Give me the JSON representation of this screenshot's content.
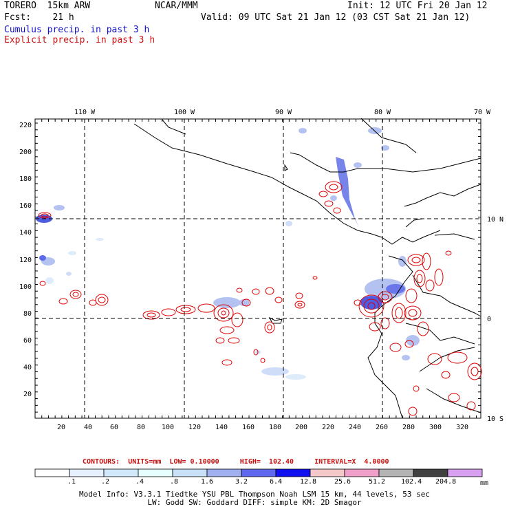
{
  "header": {
    "model_name": "TORERO  15km ARW",
    "org": "NCAR/MMM",
    "init": "Init: 12 UTC Fri 20 Jan 12",
    "fcst": "Fcst:    21 h",
    "valid": "Valid: 09 UTC Sat 21 Jan 12 (03 CST Sat 21 Jan 12)",
    "cumulus": "Cumulus precip. in past 3 h",
    "explicit": "Explicit precip. in past 3 h"
  },
  "colors": {
    "cumulus_text": "#1010c8",
    "explicit_text": "#d01010",
    "contour_red": "#e00000",
    "map_line": "#000000"
  },
  "map": {
    "lon_labels": [
      "110 W",
      "100 W",
      "90 W",
      "80 W",
      "70 W"
    ],
    "lat_labels": [
      "10 N",
      "0",
      "10 S"
    ],
    "y_ticks": [
      "220",
      "200",
      "180",
      "160",
      "140",
      "120",
      "100",
      "80",
      "60",
      "40",
      "20"
    ],
    "x_ticks": [
      "20",
      "40",
      "60",
      "80",
      "100",
      "120",
      "140",
      "160",
      "180",
      "200",
      "220",
      "240",
      "260",
      "280",
      "300",
      "320"
    ]
  },
  "colorbar": {
    "labels": [
      ".1",
      ".2",
      ".4",
      ".8",
      "1.6",
      "3.2",
      "6.4",
      "12.8",
      "25.6",
      "51.2",
      "102.4",
      "204.8"
    ],
    "unit": "mm",
    "colors": [
      "#ffffff",
      "#e6f0ff",
      "#d0e8fa",
      "#e6ffff",
      "#c8e0f8",
      "#a0b0f0",
      "#6068f0",
      "#1010f0",
      "#f4c8c8",
      "#f0a0c8",
      "#b4b4b4",
      "#404040",
      "#d8a0f0"
    ]
  },
  "contours": {
    "label": "CONTOURS:  UNITS=mm  LOW= 0.10000     HIGH=  102.40     INTERVAL=X  4.0000"
  },
  "model_info": {
    "line1": "Model Info: V3.3.1    Tiedtke YSU PBL  Thompson     Noah LSM  15 km,   44 levels,   53 sec",
    "line2": "LW: Godd SW: Goddard DIFF: simple KM: 2D Smagor"
  }
}
